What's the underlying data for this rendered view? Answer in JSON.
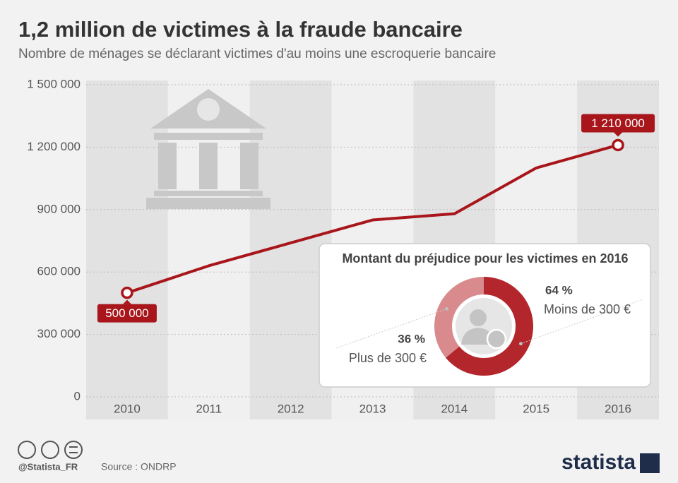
{
  "chart_data": [
    {
      "type": "line",
      "title": "1,2 million de victimes à la fraude bancaire",
      "subtitle": "Nombre de ménages se déclarant victimes d'au moins une escroquerie bancaire",
      "categories": [
        "2010",
        "2011",
        "2012",
        "2013",
        "2014",
        "2015",
        "2016"
      ],
      "values": [
        500000,
        630000,
        740000,
        850000,
        880000,
        1100000,
        1210000
      ],
      "value_labels": [
        "500 000",
        null,
        null,
        null,
        null,
        null,
        "1 210 000"
      ],
      "color": "#a8161b",
      "ylim": [
        0,
        1500000
      ],
      "yticks": [
        0,
        {
          "value": 300000,
          "label": "300 000"
        },
        {
          "value": 600000,
          "label": "600 000"
        },
        {
          "value": 900000,
          "label": "900 000"
        },
        {
          "value": 1200000,
          "label": "1 200 000"
        },
        {
          "value": 1500000,
          "label": "1 500 000"
        }
      ],
      "grid": true
    },
    {
      "type": "pie",
      "title": "Montant du préjudice pour les victimes en 2016",
      "categories": [
        "Moins de 300 €",
        "Plus de 300 €"
      ],
      "values": [
        64,
        36
      ],
      "value_labels": [
        "64 %",
        "36 %"
      ],
      "colors": [
        "#b3272c",
        "#d98a8c"
      ]
    }
  ],
  "footer": {
    "handle": "@Statista_FR",
    "source": "Source : ONDRP",
    "brand": "statista"
  }
}
